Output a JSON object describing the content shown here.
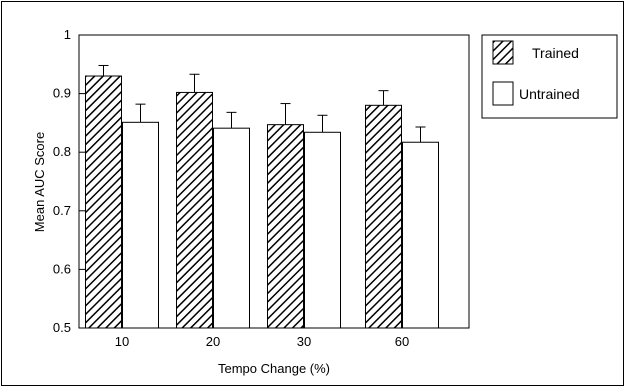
{
  "chart_data": {
    "type": "bar",
    "title": "",
    "xlabel": "Tempo Change (%)",
    "ylabel": "Mean AUC Score",
    "categories": [
      "10",
      "20",
      "30",
      "60"
    ],
    "ylim": [
      0.5,
      1
    ],
    "yticks": [
      "0.5",
      "0.6",
      "0.7",
      "0.8",
      "0.9",
      "1"
    ],
    "series": [
      {
        "name": "Trained",
        "values": [
          0.93,
          0.902,
          0.847,
          0.88
        ],
        "errors": [
          0.018,
          0.031,
          0.036,
          0.025
        ],
        "fill": "hatched"
      },
      {
        "name": "Untrained",
        "values": [
          0.851,
          0.841,
          0.834,
          0.817
        ],
        "errors": [
          0.031,
          0.027,
          0.029,
          0.026
        ],
        "fill": "white"
      }
    ],
    "legend_position": "right",
    "grid": false,
    "error_bars": "upper only"
  },
  "colors": {
    "axis": "#000000",
    "bar_outline": "#000000",
    "untrained_fill": "#ffffff",
    "hatch": "#000000"
  }
}
